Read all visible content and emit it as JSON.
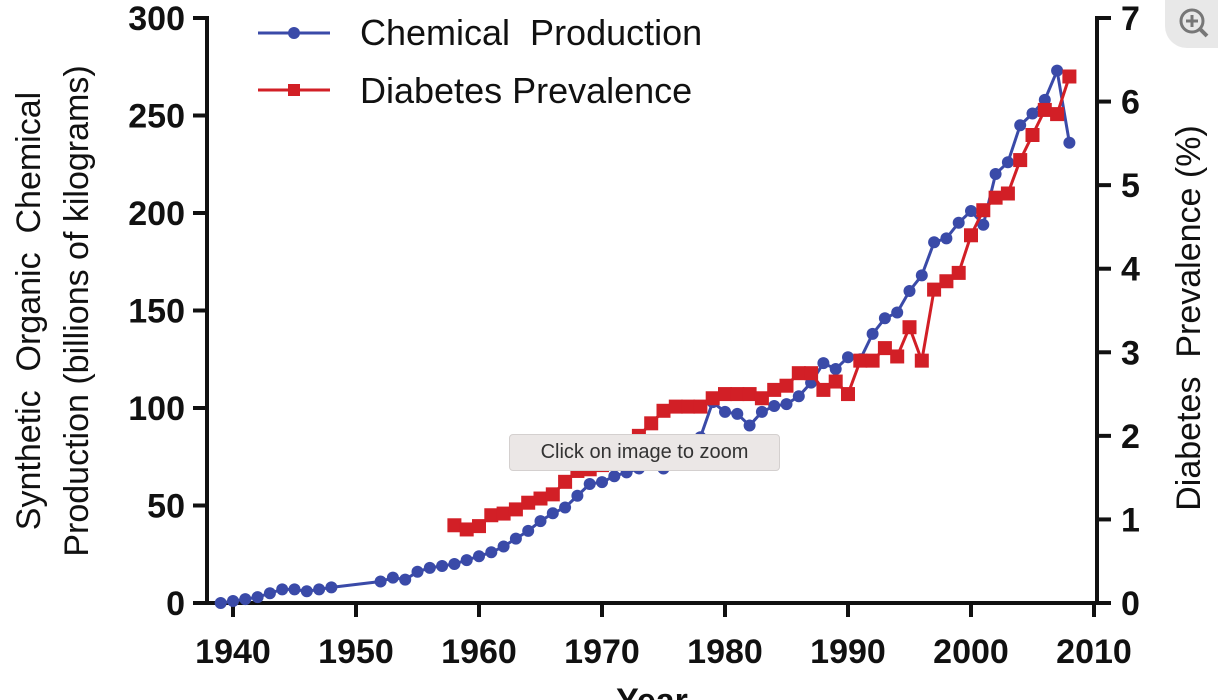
{
  "chart_data": {
    "type": "line",
    "title": "",
    "xlabel": "Year",
    "ylabel": "Synthetic  Organic  Chemical Production (billions of kilograms)",
    "ylabel_lines": [
      "Synthetic  Organic  Chemical",
      "Production (billions of kilograms)"
    ],
    "y2label": "Diabetes  Prevalence (%)",
    "xlim": [
      1938,
      2010
    ],
    "ylim": [
      0,
      300
    ],
    "y2lim": [
      0,
      7
    ],
    "xticks": [
      "1940",
      "1950",
      "1960",
      "1970",
      "1980",
      "1990",
      "2000",
      "2010"
    ],
    "yticks": [
      "0",
      "50",
      "100",
      "150",
      "200",
      "250",
      "300"
    ],
    "y2ticks": [
      "0",
      "1",
      "2",
      "3",
      "4",
      "5",
      "6",
      "7"
    ],
    "legend_position": "top-left",
    "series": [
      {
        "name": "Chemical  Production",
        "axis": "left",
        "color": "#3a4aa8",
        "marker": "circle",
        "x": [
          1939,
          1940,
          1941,
          1942,
          1943,
          1944,
          1945,
          1946,
          1947,
          1948,
          1952,
          1953,
          1954,
          1955,
          1956,
          1957,
          1958,
          1959,
          1960,
          1961,
          1962,
          1963,
          1964,
          1965,
          1966,
          1967,
          1968,
          1969,
          1970,
          1971,
          1972,
          1973,
          1974,
          1975,
          1976,
          1977,
          1978,
          1979,
          1980,
          1981,
          1982,
          1983,
          1984,
          1985,
          1986,
          1987,
          1988,
          1989,
          1990,
          1991,
          1992,
          1993,
          1994,
          1995,
          1996,
          1997,
          1998,
          1999,
          2000,
          2001,
          2002,
          2003,
          2004,
          2005,
          2006,
          2007,
          2008
        ],
        "values": [
          0,
          1,
          2,
          3,
          5,
          7,
          7,
          6,
          7,
          8,
          11,
          13,
          12,
          16,
          18,
          19,
          20,
          22,
          24,
          26,
          29,
          33,
          37,
          42,
          46,
          49,
          55,
          61,
          62,
          65,
          67,
          69,
          71,
          69,
          74,
          78,
          85,
          103,
          98,
          97,
          91,
          98,
          101,
          102,
          106,
          113,
          123,
          120,
          126,
          125,
          138,
          146,
          149,
          160,
          168,
          185,
          187,
          195,
          201,
          194,
          220,
          226,
          245,
          251,
          258,
          273,
          236
        ]
      },
      {
        "name": "Diabetes Prevalence",
        "axis": "right",
        "color": "#d21f26",
        "marker": "square",
        "x": [
          1958,
          1959,
          1960,
          1961,
          1962,
          1963,
          1964,
          1965,
          1966,
          1967,
          1968,
          1969,
          1970,
          1971,
          1972,
          1973,
          1974,
          1975,
          1976,
          1977,
          1978,
          1979,
          1980,
          1981,
          1982,
          1983,
          1984,
          1985,
          1986,
          1987,
          1988,
          1989,
          1990,
          1991,
          1992,
          1993,
          1994,
          1995,
          1996,
          1997,
          1998,
          1999,
          2000,
          2001,
          2002,
          2003,
          2004,
          2005,
          2006,
          2007,
          2008
        ],
        "values": [
          0.93,
          0.88,
          0.92,
          1.05,
          1.07,
          1.12,
          1.2,
          1.25,
          1.3,
          1.45,
          1.58,
          1.6,
          1.65,
          1.75,
          1.85,
          2.0,
          2.15,
          2.3,
          2.35,
          2.35,
          2.35,
          2.45,
          2.5,
          2.5,
          2.5,
          2.45,
          2.55,
          2.6,
          2.75,
          2.75,
          2.55,
          2.65,
          2.5,
          2.9,
          2.9,
          3.05,
          2.95,
          3.3,
          2.9,
          3.75,
          3.85,
          3.95,
          4.4,
          4.7,
          4.85,
          4.9,
          5.3,
          5.6,
          5.9,
          5.85,
          6.3
        ]
      }
    ]
  },
  "overlay": {
    "tooltip": "Click on image to zoom",
    "zoom_icon": "zoom-in-icon"
  }
}
